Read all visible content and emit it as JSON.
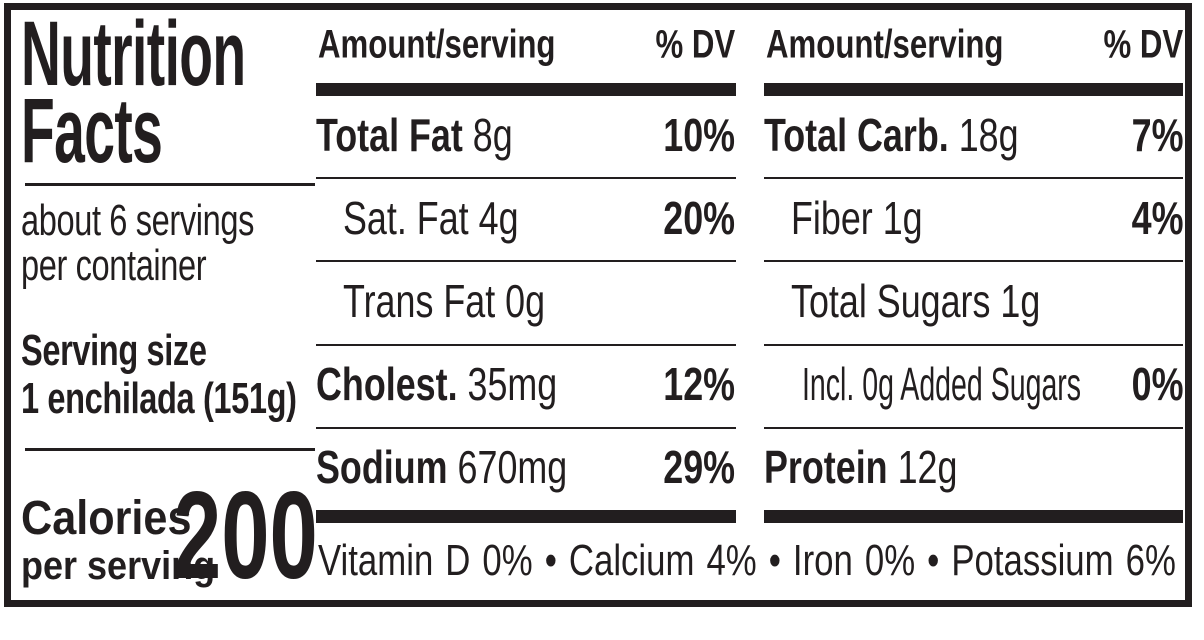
{
  "label": {
    "title_line1": "Nutrition",
    "title_line2": "Facts",
    "servings_line1": "about 6 servings",
    "servings_line2": "per container",
    "serving_size_label": "Serving size",
    "serving_size_value": "1 enchilada (151g)",
    "calories_label": "Calories",
    "calories_sublabel": "per serving",
    "calories_value": "200",
    "columns": [
      {
        "header_amount": "Amount/serving",
        "header_dv": "% DV",
        "rows": [
          {
            "name": "Total Fat",
            "bold": true,
            "amount": "8g",
            "dv": "10%",
            "indent": 0
          },
          {
            "name": "Sat. Fat",
            "bold": false,
            "amount": "4g",
            "dv": "20%",
            "indent": 1
          },
          {
            "name": "Trans Fat",
            "bold": false,
            "amount": "0g",
            "dv": "",
            "indent": 1
          },
          {
            "name": "Cholest.",
            "bold": true,
            "amount": "35mg",
            "dv": "12%",
            "indent": 0
          },
          {
            "name": "Sodium",
            "bold": true,
            "amount": "670mg",
            "dv": "29%",
            "indent": 0
          }
        ]
      },
      {
        "header_amount": "Amount/serving",
        "header_dv": "% DV",
        "rows": [
          {
            "name": "Total Carb.",
            "bold": true,
            "amount": "18g",
            "dv": "7%",
            "indent": 0
          },
          {
            "name": "Fiber",
            "bold": false,
            "amount": "1g",
            "dv": "4%",
            "indent": 1
          },
          {
            "name": "Total Sugars",
            "bold": false,
            "amount": "1g",
            "dv": "",
            "indent": 1
          },
          {
            "name": "Incl. 0g Added Sugars",
            "bold": false,
            "amount": "",
            "dv": "0%",
            "indent": 2
          },
          {
            "name": "Protein",
            "bold": true,
            "amount": "12g",
            "dv": "",
            "indent": 0
          }
        ]
      }
    ],
    "footer": "Vitamin D 0% • Calcium 4% • Iron 0% • Potassium 6%",
    "colors": {
      "ink": "#221e1f",
      "background": "#ffffff"
    }
  }
}
